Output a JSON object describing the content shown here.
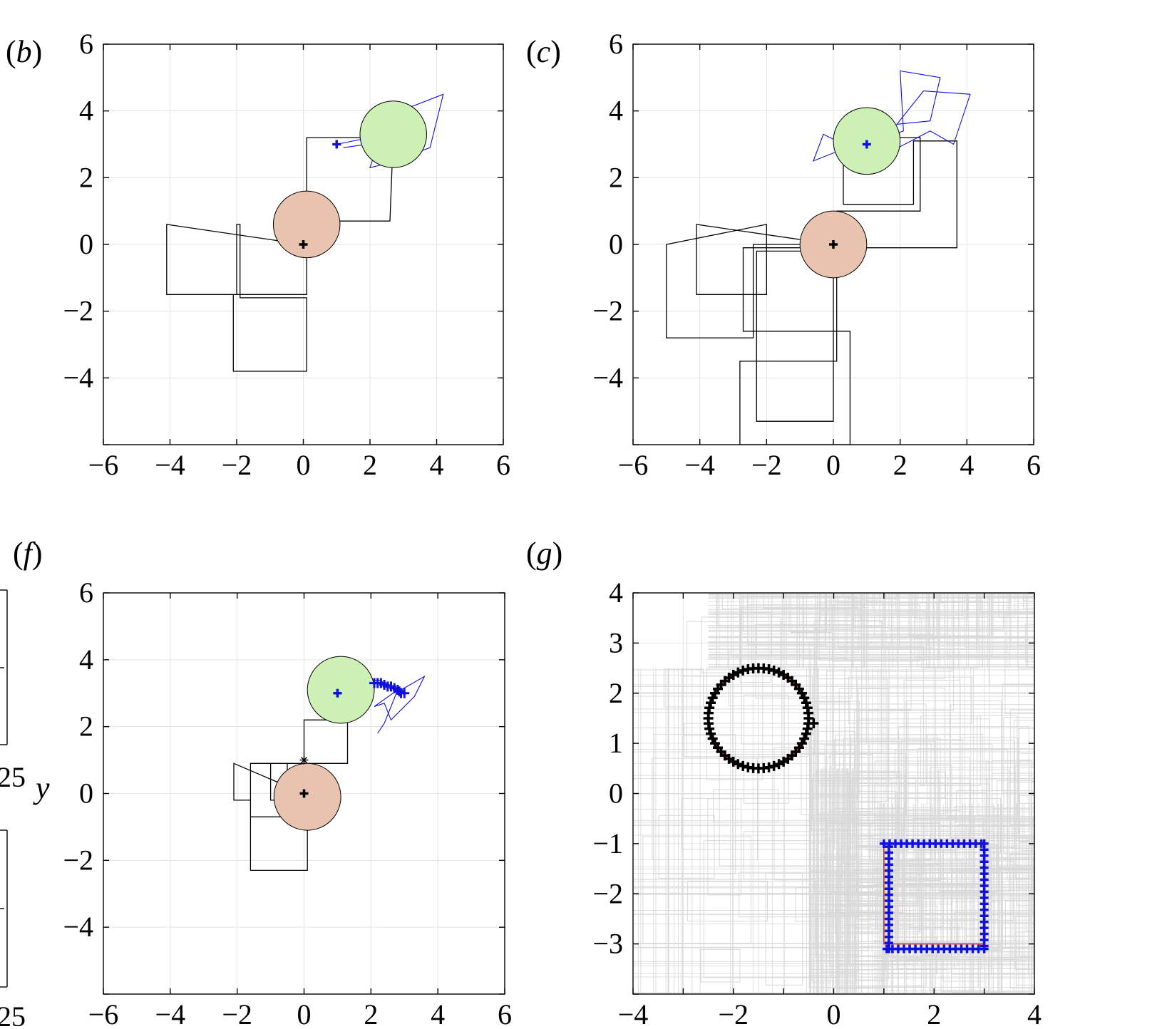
{
  "panels": [
    {
      "id": "b",
      "letter": "b",
      "xticks": [
        "−6",
        "−4",
        "−2",
        "0",
        "2",
        "4",
        "6"
      ],
      "yticks": [
        "6",
        "4",
        "2",
        "0",
        "−2",
        "−4"
      ],
      "ylabel": ""
    },
    {
      "id": "c",
      "letter": "c",
      "xticks": [
        "−6",
        "−4",
        "−2",
        "0",
        "2",
        "4",
        "6"
      ],
      "yticks": [
        "6",
        "4",
        "2",
        "0",
        "−2",
        "−4"
      ],
      "ylabel": ""
    },
    {
      "id": "f",
      "letter": "f",
      "xticks": [
        "−6",
        "−4",
        "−2",
        "0",
        "2",
        "4",
        "6"
      ],
      "yticks": [
        "6",
        "4",
        "2",
        "0",
        "−2",
        "−4"
      ],
      "ylabel": "y"
    },
    {
      "id": "g",
      "letter": "g",
      "xticks": [
        "−4",
        "−2",
        "0",
        "2",
        "4"
      ],
      "yticks": [
        "4",
        "3",
        "2",
        "1",
        "0",
        "−1",
        "−2",
        "−3"
      ],
      "ylabel": ""
    }
  ],
  "edge_fragments": [
    "25",
    "25"
  ],
  "colors": {
    "target_circle": "#cdf0b5",
    "agent_circle": "#e8c4b0",
    "agent_path": "#000000",
    "target_path": "#1010e0",
    "reference_path": "#d02010",
    "background_paths": "#d9d9d9",
    "grid": "#e3e3e3"
  },
  "chart_data": [
    {
      "panel": "b",
      "type": "scatter",
      "title": "",
      "xlabel": "",
      "ylabel": "",
      "xlim": [
        -6,
        6
      ],
      "ylim": [
        -6,
        6
      ],
      "grid": true,
      "circles": [
        {
          "name": "agent",
          "center": [
            0.1,
            0.6
          ],
          "radius": 1.0,
          "color": "#e8c4b0"
        },
        {
          "name": "target",
          "center": [
            2.7,
            3.3
          ],
          "radius": 1.0,
          "color": "#cdf0b5"
        }
      ],
      "markers": [
        {
          "name": "agent-start",
          "x": 0,
          "y": 0,
          "color": "#000000"
        },
        {
          "name": "target-start",
          "x": 1.0,
          "y": 3.0,
          "color": "#1010e0"
        }
      ],
      "black_path": [
        [
          0,
          0
        ],
        [
          -4.1,
          0.6
        ],
        [
          -4.1,
          -1.5
        ],
        [
          -2,
          -1.5
        ],
        [
          -2,
          0.6
        ],
        [
          -1.9,
          0.6
        ],
        [
          -1.9,
          -1.6
        ],
        [
          0.1,
          -1.6
        ],
        [
          0.1,
          -3.8
        ],
        [
          -2.1,
          -3.8
        ],
        [
          -2.1,
          -1.5
        ],
        [
          0.1,
          -1.5
        ],
        [
          0.1,
          0.6
        ],
        [
          0.1,
          3.2
        ],
        [
          1.8,
          3.2
        ],
        [
          1.9,
          3.2
        ],
        [
          2.7,
          3.3
        ],
        [
          2.6,
          0.7
        ],
        [
          1.1,
          0.7
        ]
      ],
      "blue_path": [
        [
          1.0,
          3.0
        ],
        [
          2.0,
          3.2
        ],
        [
          2.4,
          3.8
        ],
        [
          4.2,
          4.5
        ],
        [
          3.8,
          2.9
        ],
        [
          2.4,
          2.4
        ],
        [
          2.0,
          2.3
        ],
        [
          2.3,
          3.2
        ],
        [
          1.9,
          3.0
        ],
        [
          1.2,
          2.9
        ]
      ]
    },
    {
      "panel": "c",
      "type": "scatter",
      "title": "",
      "xlabel": "",
      "ylabel": "",
      "xlim": [
        -6,
        6
      ],
      "ylim": [
        -6,
        6
      ],
      "grid": true,
      "circles": [
        {
          "name": "agent",
          "center": [
            0.0,
            0.0
          ],
          "radius": 1.0,
          "color": "#e8c4b0"
        },
        {
          "name": "target",
          "center": [
            1.0,
            3.1
          ],
          "radius": 1.0,
          "color": "#cdf0b5"
        }
      ],
      "markers": [
        {
          "name": "agent-start",
          "x": 0,
          "y": 0,
          "color": "#000000"
        },
        {
          "name": "target-start",
          "x": 1.0,
          "y": 3.0,
          "color": "#1010e0"
        }
      ],
      "black_path": [
        [
          0,
          0
        ],
        [
          -4.1,
          0.6
        ],
        [
          -4.1,
          -1.5
        ],
        [
          -2,
          -1.5
        ],
        [
          -2,
          0.6
        ],
        [
          -5,
          0
        ],
        [
          -5,
          -2.8
        ],
        [
          -2.4,
          -2.8
        ],
        [
          -2.4,
          0
        ],
        [
          0.1,
          0
        ],
        [
          0.1,
          -3.5
        ],
        [
          -2.8,
          -3.5
        ],
        [
          -2.8,
          -6
        ],
        [
          0.5,
          -6
        ],
        [
          0.5,
          -2.6
        ],
        [
          -2.7,
          -2.6
        ],
        [
          -2.7,
          -0.1
        ],
        [
          0,
          -0.1
        ],
        [
          0,
          -5.3
        ],
        [
          -2.3,
          -5.3
        ],
        [
          -2.3,
          -0.2
        ],
        [
          0.1,
          -0.2
        ],
        [
          0.1,
          0.4
        ],
        [
          0.1,
          1.0
        ],
        [
          2.6,
          1.0
        ],
        [
          2.6,
          3.2
        ],
        [
          0.3,
          3.2
        ],
        [
          0.3,
          1.2
        ],
        [
          2.4,
          1.2
        ],
        [
          2.4,
          3.1
        ],
        [
          3.7,
          3.1
        ],
        [
          3.7,
          -0.1
        ],
        [
          0.1,
          -0.1
        ]
      ],
      "blue_path": [
        [
          1.0,
          3.0
        ],
        [
          2.1,
          3.4
        ],
        [
          2.0,
          5.2
        ],
        [
          3.2,
          5.0
        ],
        [
          2.9,
          3.7
        ],
        [
          1.9,
          3.6
        ],
        [
          2.7,
          4.6
        ],
        [
          4.1,
          4.5
        ],
        [
          3.6,
          3.0
        ],
        [
          2.9,
          3.4
        ],
        [
          0.6,
          2.2
        ],
        [
          0.9,
          3.1
        ],
        [
          -0.6,
          2.5
        ],
        [
          -0.3,
          3.3
        ],
        [
          0.3,
          3.0
        ]
      ]
    },
    {
      "panel": "f",
      "type": "scatter",
      "title": "",
      "xlabel": "",
      "ylabel": "y",
      "xlim": [
        -6,
        6
      ],
      "ylim": [
        -6,
        6
      ],
      "grid": true,
      "circles": [
        {
          "name": "agent",
          "center": [
            0.1,
            -0.1
          ],
          "radius": 1.0,
          "color": "#e8c4b0"
        },
        {
          "name": "target",
          "center": [
            1.1,
            3.1
          ],
          "radius": 1.0,
          "color": "#cdf0b5"
        }
      ],
      "markers": [
        {
          "name": "agent-start",
          "x": 0,
          "y": 0,
          "color": "#000000"
        },
        {
          "name": "target-start",
          "x": 1.0,
          "y": 3.0,
          "color": "#1010e0"
        },
        {
          "name": "capture-point",
          "x": 0,
          "y": 1.0,
          "color": "#000000"
        }
      ],
      "black_path": [
        [
          0,
          0
        ],
        [
          -2.1,
          0.9
        ],
        [
          -2.1,
          -0.2
        ],
        [
          -1.6,
          -0.2
        ],
        [
          -1.6,
          0.9
        ],
        [
          -1.0,
          0.9
        ],
        [
          -1.0,
          -0.2
        ],
        [
          -0.5,
          -0.2
        ],
        [
          -0.5,
          0.9
        ],
        [
          0,
          0.9
        ],
        [
          0,
          2.2
        ],
        [
          1.3,
          2.2
        ],
        [
          1.3,
          0.9
        ],
        [
          0,
          0.9
        ],
        [
          -1.6,
          0.9
        ],
        [
          -1.6,
          -0.7
        ],
        [
          0.1,
          -0.7
        ],
        [
          0.1,
          -2.3
        ],
        [
          -1.6,
          -2.3
        ],
        [
          -1.6,
          -0.7
        ]
      ],
      "blue_path": [
        [
          1.0,
          3.0
        ],
        [
          2.2,
          3.4
        ],
        [
          2.9,
          3.1
        ],
        [
          3.6,
          3.5
        ],
        [
          3.3,
          2.9
        ],
        [
          2.6,
          2.2
        ],
        [
          2.4,
          2.7
        ],
        [
          2.1,
          2.6
        ],
        [
          2.8,
          3.1
        ],
        [
          2.4,
          2.1
        ],
        [
          2.2,
          1.8
        ]
      ],
      "blue_trail": [
        [
          2.1,
          3.3
        ],
        [
          2.2,
          3.3
        ],
        [
          2.3,
          3.3
        ],
        [
          2.4,
          3.25
        ],
        [
          2.5,
          3.2
        ],
        [
          2.6,
          3.2
        ],
        [
          2.7,
          3.15
        ],
        [
          2.8,
          3.1
        ],
        [
          2.85,
          3.05
        ],
        [
          2.9,
          3.0
        ],
        [
          3.0,
          3.0
        ]
      ]
    },
    {
      "panel": "g",
      "type": "scatter",
      "title": "",
      "xlabel": "",
      "ylabel": "",
      "xlim": [
        -4,
        4
      ],
      "ylim": [
        -4,
        4
      ],
      "grid": true,
      "reference_circle": {
        "center": [
          -1.5,
          1.5
        ],
        "radius": 1.0,
        "color": "#d02010"
      },
      "reference_square": {
        "x": [
          1.0,
          3.0
        ],
        "y": [
          -3.0,
          -1.0
        ],
        "color": "#d02010"
      },
      "black_markers": {
        "shape": "circle-trajectory",
        "center": [
          -1.5,
          1.5
        ],
        "radius": 1.0,
        "count": 60,
        "bump": [
          -0.4,
          1.4
        ],
        "color": "#000000"
      },
      "blue_markers": {
        "shape": "square-trajectory",
        "x": [
          1.0,
          3.0
        ],
        "y": [
          -3.1,
          -1.0
        ],
        "count": 70,
        "color": "#1010e0"
      },
      "background": {
        "color": "#d9d9d9",
        "regions": [
          [
            -4,
            4,
            -4.0,
            2.5
          ],
          [
            -2.5,
            4,
            2.5,
            4.0
          ],
          [
            0.8,
            4.0,
            -4.0,
            -0.2
          ],
          [
            -0.5,
            0.5,
            -4.0,
            0.5
          ]
        ]
      }
    }
  ]
}
